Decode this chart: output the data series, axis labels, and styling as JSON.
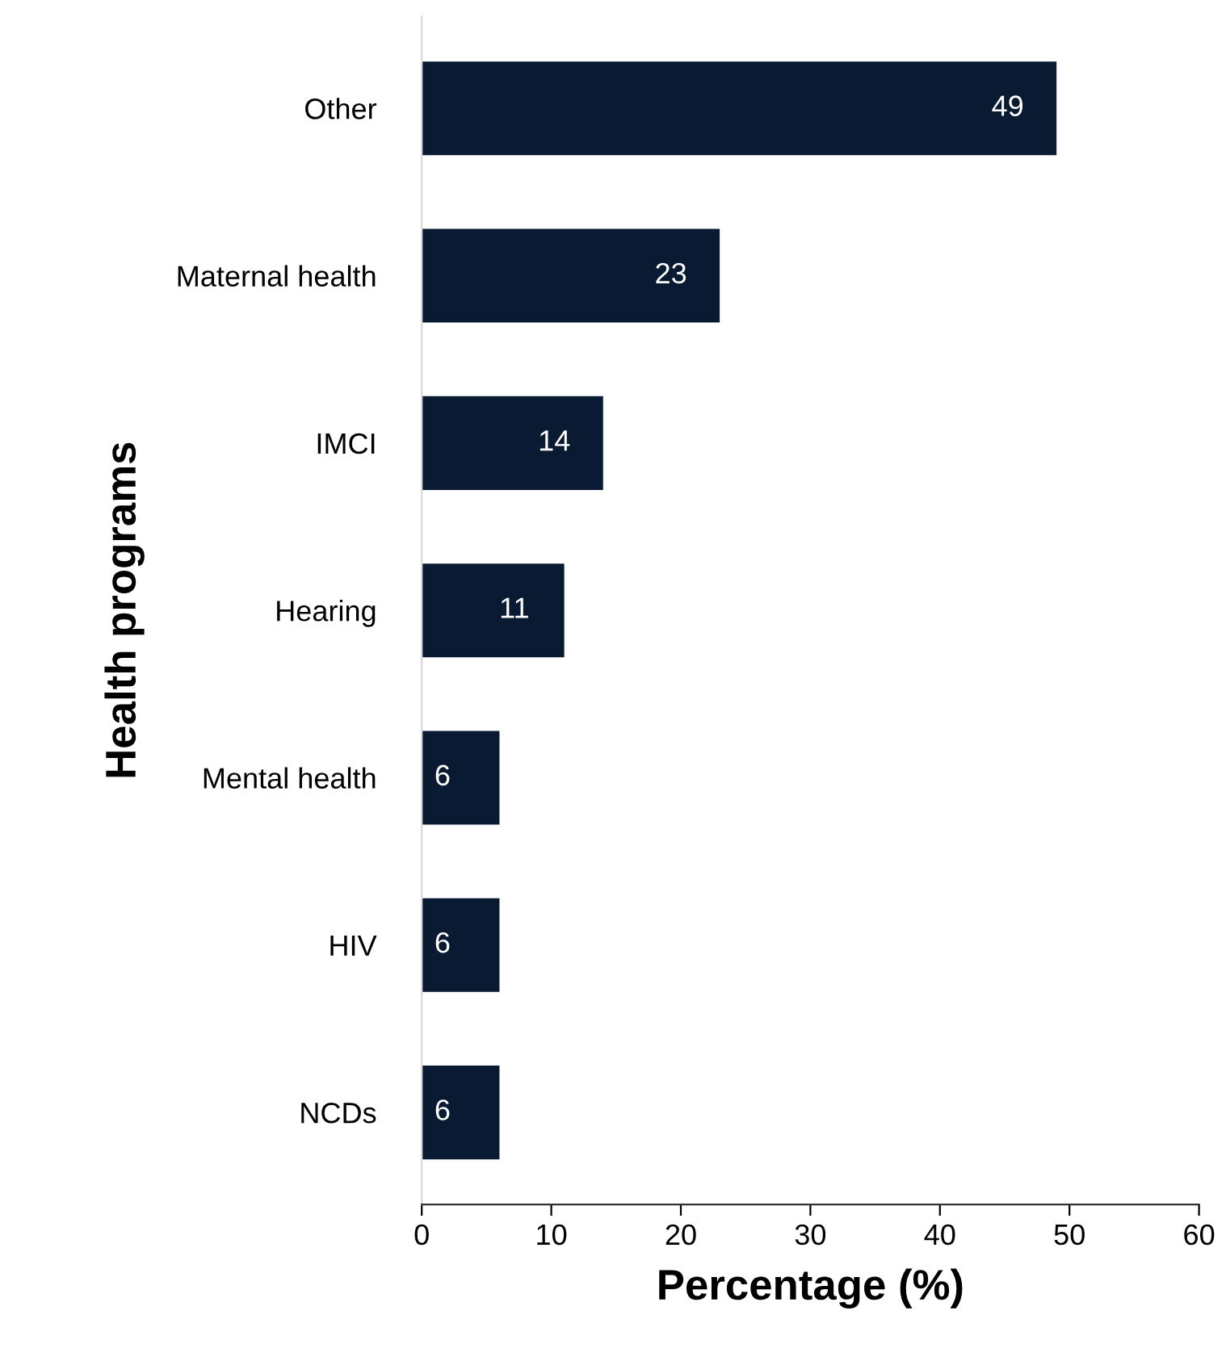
{
  "chart_data": {
    "type": "bar",
    "orientation": "horizontal",
    "categories": [
      "Other",
      "Maternal health",
      "IMCI",
      "Hearing",
      "Mental health",
      "HIV",
      "NCDs"
    ],
    "values": [
      49,
      23,
      14,
      11,
      6,
      6,
      6
    ],
    "color": "#0a1a33",
    "xlim": [
      0,
      60
    ],
    "xticks": [
      0,
      10,
      20,
      30,
      40,
      50,
      60
    ],
    "xlabel": "Percentage (%)",
    "ylabel": "Health programs",
    "data_labels": true,
    "grid": false,
    "legend": false
  }
}
